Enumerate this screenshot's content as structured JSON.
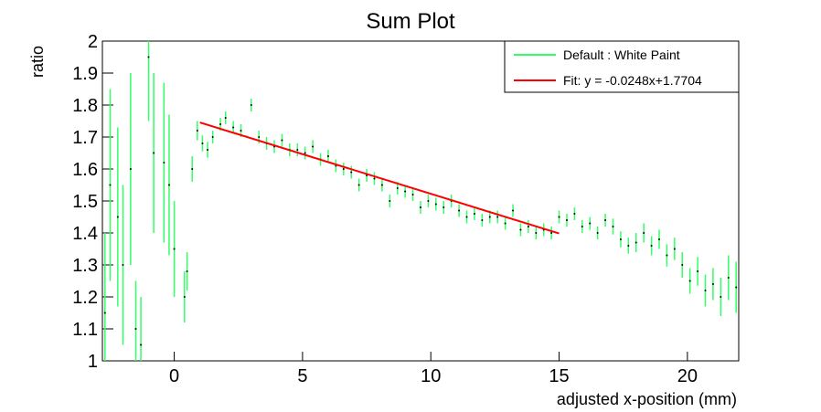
{
  "chart_data": {
    "type": "scatter",
    "title": "Sum Plot",
    "xlabel": "adjusted x-position (mm)",
    "ylabel": "ratio",
    "xlim": [
      -2.8,
      22.0
    ],
    "ylim": [
      1.0,
      2.0
    ],
    "x_ticks": [
      {
        "value": 0,
        "label": "0"
      },
      {
        "value": 5,
        "label": "5"
      },
      {
        "value": 10,
        "label": "10"
      },
      {
        "value": 15,
        "label": "15"
      },
      {
        "value": 20,
        "label": "20"
      }
    ],
    "y_ticks": [
      {
        "value": 1.0,
        "label": "1"
      },
      {
        "value": 1.1,
        "label": "1.1"
      },
      {
        "value": 1.2,
        "label": "1.2"
      },
      {
        "value": 1.3,
        "label": "1.3"
      },
      {
        "value": 1.4,
        "label": "1.4"
      },
      {
        "value": 1.5,
        "label": "1.5"
      },
      {
        "value": 1.6,
        "label": "1.6"
      },
      {
        "value": 1.7,
        "label": "1.7"
      },
      {
        "value": 1.8,
        "label": "1.8"
      },
      {
        "value": 1.9,
        "label": "1.9"
      },
      {
        "value": 2.0,
        "label": "2"
      }
    ],
    "legend_position": "top-right",
    "series": [
      {
        "name": "Default : White Paint",
        "color": "#33ff66",
        "x": [
          -2.7,
          -2.5,
          -2.2,
          -2.0,
          -1.7,
          -1.5,
          -1.3,
          -1.0,
          -0.8,
          -0.4,
          -0.2,
          0.0,
          0.4,
          0.5,
          0.7,
          0.9,
          1.1,
          1.3,
          1.5,
          1.8,
          2.0,
          2.3,
          2.6,
          3.0,
          3.3,
          3.6,
          3.9,
          4.2,
          4.5,
          4.8,
          5.1,
          5.4,
          5.7,
          6.0,
          6.3,
          6.6,
          6.9,
          7.2,
          7.5,
          7.8,
          8.1,
          8.4,
          8.7,
          9.0,
          9.3,
          9.6,
          9.9,
          10.2,
          10.5,
          10.8,
          11.1,
          11.4,
          11.7,
          12.0,
          12.3,
          12.6,
          12.9,
          13.2,
          13.5,
          13.8,
          14.1,
          14.4,
          14.7,
          15.0,
          15.3,
          15.6,
          15.9,
          16.2,
          16.5,
          16.8,
          17.1,
          17.4,
          17.7,
          18.0,
          18.3,
          18.6,
          18.9,
          19.2,
          19.5,
          19.8,
          20.1,
          20.4,
          20.7,
          21.0,
          21.3,
          21.6,
          21.9
        ],
        "y": [
          1.15,
          1.55,
          1.45,
          1.3,
          1.6,
          1.1,
          1.05,
          1.95,
          1.65,
          1.62,
          1.55,
          1.35,
          1.2,
          1.28,
          1.6,
          1.72,
          1.68,
          1.66,
          1.7,
          1.74,
          1.76,
          1.73,
          1.72,
          1.8,
          1.7,
          1.68,
          1.67,
          1.69,
          1.66,
          1.66,
          1.65,
          1.67,
          1.63,
          1.64,
          1.61,
          1.6,
          1.59,
          1.55,
          1.58,
          1.57,
          1.55,
          1.5,
          1.54,
          1.53,
          1.52,
          1.48,
          1.5,
          1.49,
          1.48,
          1.5,
          1.47,
          1.45,
          1.46,
          1.44,
          1.45,
          1.45,
          1.43,
          1.47,
          1.41,
          1.42,
          1.4,
          1.41,
          1.4,
          1.45,
          1.44,
          1.46,
          1.42,
          1.43,
          1.4,
          1.44,
          1.42,
          1.38,
          1.36,
          1.37,
          1.4,
          1.36,
          1.38,
          1.33,
          1.35,
          1.3,
          1.25,
          1.28,
          1.22,
          1.24,
          1.2,
          1.26,
          1.23
        ],
        "err": [
          0.25,
          0.3,
          0.28,
          0.25,
          0.3,
          0.15,
          0.15,
          0.2,
          0.25,
          0.25,
          0.22,
          0.15,
          0.08,
          0.06,
          0.04,
          0.03,
          0.025,
          0.025,
          0.02,
          0.02,
          0.02,
          0.02,
          0.02,
          0.02,
          0.02,
          0.02,
          0.02,
          0.02,
          0.02,
          0.02,
          0.02,
          0.02,
          0.02,
          0.02,
          0.02,
          0.02,
          0.02,
          0.02,
          0.02,
          0.02,
          0.02,
          0.02,
          0.02,
          0.02,
          0.02,
          0.02,
          0.02,
          0.02,
          0.02,
          0.02,
          0.02,
          0.02,
          0.02,
          0.02,
          0.02,
          0.02,
          0.02,
          0.02,
          0.02,
          0.02,
          0.02,
          0.02,
          0.02,
          0.02,
          0.02,
          0.02,
          0.02,
          0.02,
          0.02,
          0.02,
          0.025,
          0.025,
          0.025,
          0.03,
          0.03,
          0.03,
          0.03,
          0.035,
          0.035,
          0.04,
          0.04,
          0.045,
          0.05,
          0.05,
          0.06,
          0.07,
          0.08
        ]
      },
      {
        "name": "Fit: y = -0.0248x+1.7704",
        "color": "#ff0000",
        "type": "line",
        "x": [
          1.0,
          15.0
        ],
        "y": [
          1.7456,
          1.3984
        ]
      }
    ]
  }
}
